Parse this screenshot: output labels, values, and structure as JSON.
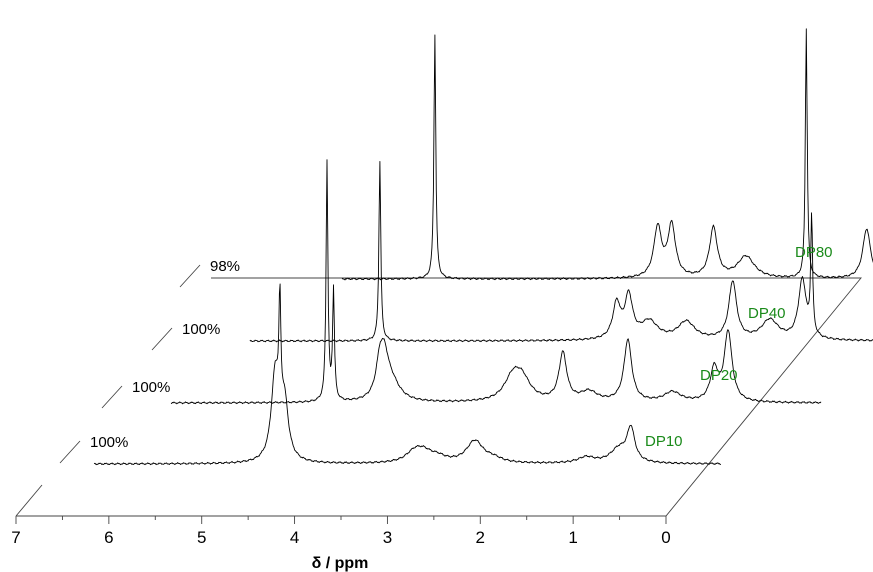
{
  "chart_data": {
    "type": "line",
    "title": "",
    "xlabel": "δ / ppm",
    "ylabel": "",
    "xlim": [
      7,
      0
    ],
    "x_reversed": true,
    "xticks": [
      7,
      6,
      5,
      4,
      3,
      2,
      1,
      0
    ],
    "grid": false,
    "layout": "stacked-3d-waterfall",
    "series": [
      {
        "name": "DP10",
        "note": "100%",
        "peaks": [
          {
            "ppm": 4.65,
            "height": 85
          },
          {
            "ppm": 4.6,
            "height": 115
          },
          {
            "ppm": 4.55,
            "height": 55
          },
          {
            "ppm": 3.15,
            "height": 10
          },
          {
            "ppm": 3.05,
            "height": 9
          },
          {
            "ppm": 2.9,
            "height": 5
          },
          {
            "ppm": 2.5,
            "height": 22
          },
          {
            "ppm": 2.3,
            "height": 4
          },
          {
            "ppm": 1.3,
            "height": 6
          },
          {
            "ppm": 0.95,
            "height": 14
          },
          {
            "ppm": 0.82,
            "height": 33
          }
        ]
      },
      {
        "name": "DP20",
        "note": "100%",
        "peaks": [
          {
            "ppm": 4.62,
            "height": 240
          },
          {
            "ppm": 4.55,
            "height": 110
          },
          {
            "ppm": 4.05,
            "height": 35
          },
          {
            "ppm": 4.0,
            "height": 30
          },
          {
            "ppm": 3.93,
            "height": 20
          },
          {
            "ppm": 2.62,
            "height": 22
          },
          {
            "ppm": 2.52,
            "height": 20
          },
          {
            "ppm": 2.08,
            "height": 48
          },
          {
            "ppm": 1.8,
            "height": 10
          },
          {
            "ppm": 1.38,
            "height": 62
          },
          {
            "ppm": 0.9,
            "height": 10
          },
          {
            "ppm": 0.45,
            "height": 32
          },
          {
            "ppm": 0.3,
            "height": 70
          }
        ]
      },
      {
        "name": "DP40",
        "note": "100%",
        "peaks": [
          {
            "ppm": 4.6,
            "height": 180
          },
          {
            "ppm": 2.05,
            "height": 35
          },
          {
            "ppm": 1.92,
            "height": 42
          },
          {
            "ppm": 1.7,
            "height": 18
          },
          {
            "ppm": 1.3,
            "height": 18
          },
          {
            "ppm": 0.8,
            "height": 58
          },
          {
            "ppm": 0.4,
            "height": 20
          },
          {
            "ppm": 0.05,
            "height": 60
          },
          {
            "ppm": -0.05,
            "height": 118
          }
        ]
      },
      {
        "name": "DP80",
        "note": "98%",
        "peaks": [
          {
            "ppm": 4.6,
            "height": 245
          },
          {
            "ppm": 2.2,
            "height": 50
          },
          {
            "ppm": 2.05,
            "height": 52
          },
          {
            "ppm": 1.6,
            "height": 50
          },
          {
            "ppm": 1.25,
            "height": 22
          },
          {
            "ppm": 0.6,
            "height": 250
          },
          {
            "ppm": -0.05,
            "height": 50
          },
          {
            "ppm": -0.45,
            "height": 165
          }
        ]
      }
    ]
  }
}
